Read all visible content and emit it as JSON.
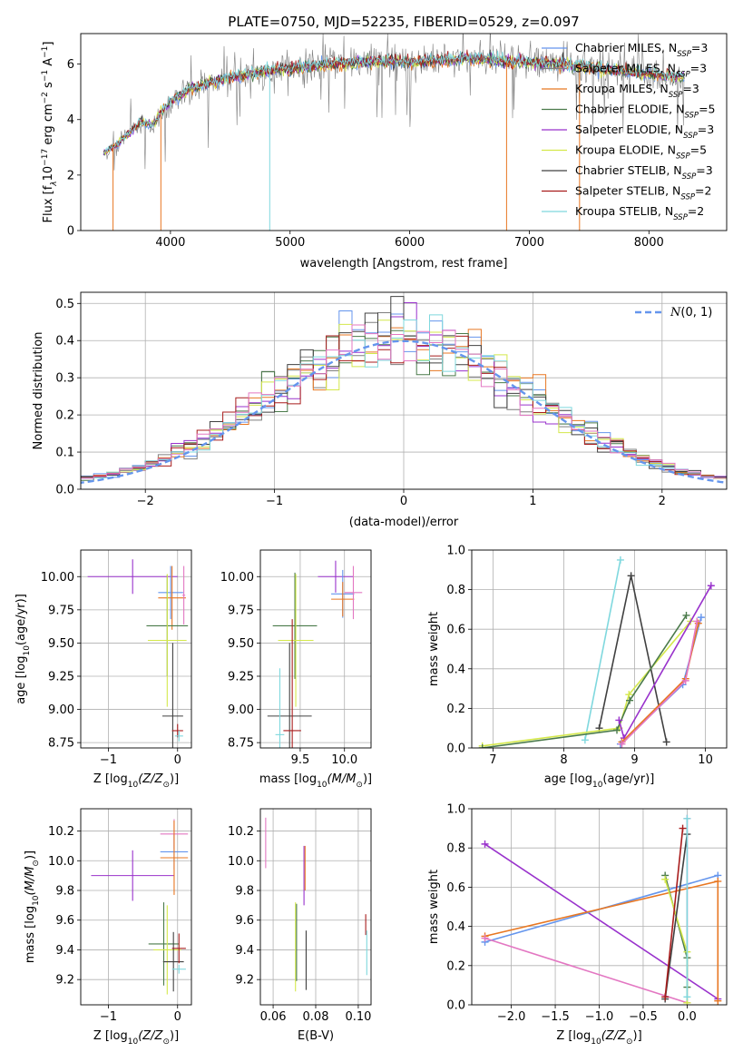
{
  "figure_title": "PLATE=0750, MJD=52235, FIBERID=0529, z=0.097",
  "colors": {
    "chabrier_miles": "#6495ED",
    "salpeter_miles": "#7f7f7f",
    "kroupa_miles": "#e87722",
    "chabrier_elodie": "#4a7a4a",
    "salpeter_elodie": "#9932CC",
    "kroupa_elodie": "#d4e84b",
    "chabrier_stelib": "#404040",
    "salpeter_stelib": "#a81c1c",
    "kroupa_stelib": "#7fd8de",
    "pink": "#e377c2",
    "gaussian": "#6495ED"
  },
  "chart_data": [
    {
      "id": "spectrum",
      "type": "line",
      "title": "PLATE=0750, MJD=52235, FIBERID=0529, z=0.097",
      "xlabel": "wavelength [Angstrom, rest frame]",
      "ylabel_parts": [
        "Flux [f",
        "λ",
        "10",
        "−17",
        " erg cm",
        "−2",
        " s",
        "−1",
        " A",
        "−1",
        "]"
      ],
      "xlim": [
        3250,
        8650
      ],
      "ylim": [
        0,
        7.1
      ],
      "xticks": [
        4000,
        5000,
        6000,
        7000,
        8000
      ],
      "yticks": [
        0,
        2,
        4,
        6
      ],
      "grid": false,
      "legend_position": "right",
      "legend": [
        {
          "pre": "Chabrier MILES, N",
          "sub": "SSP",
          "post": "=3",
          "color_key": "chabrier_miles"
        },
        {
          "pre": "Salpeter MILES, N",
          "sub": "SSP",
          "post": "=3",
          "color_key": "salpeter_miles"
        },
        {
          "pre": "Kroupa MILES, N",
          "sub": "SSP",
          "post": "=3",
          "color_key": "kroupa_miles"
        },
        {
          "pre": "Chabrier ELODIE, N",
          "sub": "SSP",
          "post": "=5",
          "color_key": "chabrier_elodie"
        },
        {
          "pre": "Salpeter ELODIE, N",
          "sub": "SSP",
          "post": "=3",
          "color_key": "salpeter_elodie"
        },
        {
          "pre": "Kroupa ELODIE, N",
          "sub": "SSP",
          "post": "=5",
          "color_key": "kroupa_elodie"
        },
        {
          "pre": "Chabrier STELIB, N",
          "sub": "SSP",
          "post": "=3",
          "color_key": "chabrier_stelib"
        },
        {
          "pre": "Salpeter STELIB, N",
          "sub": "SSP",
          "post": "=2",
          "color_key": "salpeter_stelib"
        },
        {
          "pre": "Kroupa STELIB, N",
          "sub": "SSP",
          "post": "=2",
          "color_key": "kroupa_stelib"
        }
      ],
      "continuum": {
        "x": [
          3450,
          3550,
          3650,
          3750,
          3850,
          3950,
          4050,
          4150,
          4300,
          4500,
          4700,
          4900,
          5100,
          5300,
          5500,
          5700,
          5900,
          6100,
          6300,
          6500,
          6700,
          6900,
          7100,
          7300,
          7500,
          7700,
          7900,
          8100,
          8300
        ],
        "y": [
          2.8,
          3.1,
          3.5,
          3.9,
          3.8,
          4.4,
          4.8,
          5.1,
          5.3,
          5.5,
          5.7,
          5.8,
          5.9,
          6.0,
          6.05,
          6.1,
          6.1,
          6.1,
          6.15,
          6.2,
          6.15,
          6.1,
          6.05,
          6.0,
          5.9,
          5.8,
          5.7,
          5.6,
          5.55
        ]
      },
      "dropouts": [
        {
          "x": 3520,
          "color_key": "kroupa_miles"
        },
        {
          "x": 3920,
          "color_key": "kroupa_miles"
        },
        {
          "x": 4830,
          "color_key": "kroupa_stelib"
        },
        {
          "x": 6810,
          "color_key": "kroupa_miles"
        },
        {
          "x": 7420,
          "color_key": "kroupa_miles"
        }
      ]
    },
    {
      "id": "residuals",
      "type": "histogram",
      "xlabel": "(data-model)/error",
      "ylabel": "Normed distribution",
      "xlim": [
        -2.5,
        2.5
      ],
      "ylim": [
        0,
        0.53
      ],
      "xticks": [
        -2,
        -1,
        0,
        1,
        2
      ],
      "yticks": [
        0.0,
        0.1,
        0.2,
        0.3,
        0.4,
        0.5
      ],
      "grid": true,
      "legend_position": "upper right",
      "legend": [
        {
          "label": "N(0, 1)",
          "style": "dashed",
          "color_key": "gaussian"
        }
      ],
      "bin_width": 0.1
    },
    {
      "id": "age_vs_z",
      "type": "errorbar",
      "xlabel_pre": "Z [log",
      "xlabel_sub": "10",
      "xlabel_mid": "(Z/Z",
      "xlabel_sub2": "⊙",
      "xlabel_post": ")]",
      "ylabel_pre": "age  [log",
      "ylabel_sub": "10",
      "ylabel_post": "(age/yr)]",
      "xlim": [
        -1.4,
        0.2
      ],
      "ylim": [
        8.71,
        10.2
      ],
      "xticks": [
        -1,
        0
      ],
      "yticks": [
        8.75,
        9.0,
        9.25,
        9.5,
        9.75,
        10.0
      ],
      "ytick_labels": [
        "8.75",
        "9.00",
        "9.25",
        "9.50",
        "9.75",
        "10.00"
      ],
      "grid": true,
      "points": [
        {
          "x": -0.65,
          "y": 10.0,
          "xerr": 0.65,
          "yerr": 0.13,
          "color_key": "salpeter_elodie"
        },
        {
          "x": -0.1,
          "y": 9.88,
          "xerr": 0.18,
          "yerr": 0.2,
          "color_key": "chabrier_miles"
        },
        {
          "x": -0.08,
          "y": 9.84,
          "xerr": 0.2,
          "yerr": 0.24,
          "color_key": "kroupa_miles"
        },
        {
          "x": 0.09,
          "y": 9.86,
          "xerr": 0.02,
          "yerr": 0.22,
          "color_key": "pink"
        },
        {
          "x": -0.15,
          "y": 9.63,
          "xerr": 0.3,
          "yerr": 0.38,
          "color_key": "chabrier_elodie"
        },
        {
          "x": -0.15,
          "y": 9.52,
          "xerr": 0.28,
          "yerr": 0.5,
          "color_key": "kroupa_elodie"
        },
        {
          "x": -0.07,
          "y": 8.95,
          "xerr": 0.15,
          "yerr": 0.55,
          "color_key": "chabrier_stelib"
        },
        {
          "x": 0.0,
          "y": 8.84,
          "xerr": 0.08,
          "yerr": 0.05,
          "color_key": "salpeter_stelib"
        },
        {
          "x": 0.02,
          "y": 8.8,
          "xerr": 0.06,
          "yerr": 0.04,
          "color_key": "kroupa_stelib"
        }
      ]
    },
    {
      "id": "age_vs_mass",
      "type": "errorbar",
      "xlabel_pre": "mass [log",
      "xlabel_sub": "10",
      "xlabel_mid": "(M/M",
      "xlabel_sub2": "⊙",
      "xlabel_post": ")]",
      "xlim": [
        9.05,
        10.3
      ],
      "ylim": [
        8.71,
        10.2
      ],
      "xticks": [
        9.5,
        10.0
      ],
      "xtick_labels": [
        "9.5",
        "10.0"
      ],
      "yticks": [
        8.75,
        9.0,
        9.25,
        9.5,
        9.75,
        10.0
      ],
      "ytick_labels": [
        "8.75",
        "9.00",
        "9.25",
        "9.50",
        "9.75",
        "10.00"
      ],
      "grid": true,
      "points": [
        {
          "x": 9.9,
          "y": 10.0,
          "xerr": 0.2,
          "yerr": 0.12,
          "color_key": "salpeter_elodie"
        },
        {
          "x": 9.98,
          "y": 9.87,
          "xerr": 0.13,
          "yerr": 0.18,
          "color_key": "chabrier_miles"
        },
        {
          "x": 9.98,
          "y": 9.83,
          "xerr": 0.13,
          "yerr": 0.13,
          "color_key": "kroupa_miles"
        },
        {
          "x": 10.1,
          "y": 9.88,
          "xerr": 0.1,
          "yerr": 0.2,
          "color_key": "pink"
        },
        {
          "x": 9.44,
          "y": 9.63,
          "xerr": 0.25,
          "yerr": 0.4,
          "color_key": "chabrier_elodie"
        },
        {
          "x": 9.45,
          "y": 9.52,
          "xerr": 0.2,
          "yerr": 0.5,
          "color_key": "kroupa_elodie"
        },
        {
          "x": 9.38,
          "y": 8.95,
          "xerr": 0.25,
          "yerr": 0.55,
          "color_key": "chabrier_stelib"
        },
        {
          "x": 9.41,
          "y": 8.84,
          "xerr": 0.1,
          "yerr": 0.84,
          "color_key": "salpeter_stelib"
        },
        {
          "x": 9.27,
          "y": 8.81,
          "xerr": 0.05,
          "yerr": 0.5,
          "color_key": "kroupa_stelib"
        }
      ]
    },
    {
      "id": "weight_vs_age",
      "type": "line",
      "xlabel_pre": "age  [log",
      "xlabel_sub": "10",
      "xlabel_post": "(age/yr)]",
      "ylabel": "mass weight",
      "xlim": [
        6.7,
        10.3
      ],
      "ylim": [
        0,
        1.0
      ],
      "xticks": [
        7,
        8,
        9,
        10
      ],
      "yticks": [
        0.0,
        0.2,
        0.4,
        0.6,
        0.8,
        1.0
      ],
      "grid": true,
      "series": [
        {
          "color_key": "kroupa_stelib",
          "x": [
            8.3,
            8.8
          ],
          "y": [
            0.04,
            0.95
          ]
        },
        {
          "color_key": "chabrier_stelib",
          "x": [
            8.5,
            8.95,
            9.45
          ],
          "y": [
            0.1,
            0.87,
            0.03
          ]
        },
        {
          "color_key": "kroupa_elodie",
          "x": [
            6.85,
            8.78,
            8.92,
            9.79
          ],
          "y": [
            0.01,
            0.1,
            0.27,
            0.64
          ]
        },
        {
          "color_key": "chabrier_elodie",
          "x": [
            6.85,
            8.75,
            8.93,
            9.73
          ],
          "y": [
            0.0,
            0.09,
            0.24,
            0.67
          ]
        },
        {
          "color_key": "salpeter_elodie",
          "x": [
            8.78,
            8.85,
            10.08
          ],
          "y": [
            0.14,
            0.05,
            0.82
          ]
        },
        {
          "color_key": "chabrier_miles",
          "x": [
            8.8,
            9.68,
            9.94
          ],
          "y": [
            0.02,
            0.32,
            0.66
          ]
        },
        {
          "color_key": "kroupa_miles",
          "x": [
            8.82,
            9.72,
            9.9
          ],
          "y": [
            0.03,
            0.35,
            0.63
          ]
        },
        {
          "color_key": "pink",
          "x": [
            8.82,
            9.72,
            9.88
          ],
          "y": [
            0.02,
            0.34,
            0.64
          ]
        }
      ]
    },
    {
      "id": "mass_vs_z",
      "type": "errorbar",
      "xlabel_pre": "Z [log",
      "xlabel_sub": "10",
      "xlabel_mid": "(Z/Z",
      "xlabel_sub2": "⊙",
      "xlabel_post": ")]",
      "ylabel_pre": "mass [log",
      "ylabel_sub": "10",
      "ylabel_mid": "(M/M",
      "ylabel_sub2": "⊙",
      "ylabel_post": ")]",
      "xlim": [
        -1.4,
        0.2
      ],
      "ylim": [
        9.03,
        10.35
      ],
      "xticks": [
        -1,
        0
      ],
      "yticks": [
        9.2,
        9.4,
        9.6,
        9.8,
        10.0,
        10.2
      ],
      "ytick_labels": [
        "9.2",
        "9.4",
        "9.6",
        "9.8",
        "10.0",
        "10.2"
      ],
      "grid": true,
      "points": [
        {
          "x": -0.65,
          "y": 9.9,
          "xerr": 0.6,
          "yerr": 0.17,
          "color_key": "salpeter_elodie"
        },
        {
          "x": -0.05,
          "y": 10.18,
          "xerr": 0.2,
          "yerr": 0.1,
          "color_key": "pink"
        },
        {
          "x": -0.05,
          "y": 10.06,
          "xerr": 0.2,
          "yerr": 0.12,
          "color_key": "chabrier_miles"
        },
        {
          "x": -0.05,
          "y": 10.02,
          "xerr": 0.2,
          "yerr": 0.25,
          "color_key": "kroupa_miles"
        },
        {
          "x": -0.2,
          "y": 9.44,
          "xerr": 0.22,
          "yerr": 0.28,
          "color_key": "chabrier_elodie"
        },
        {
          "x": -0.15,
          "y": 9.4,
          "xerr": 0.2,
          "yerr": 0.3,
          "color_key": "kroupa_elodie"
        },
        {
          "x": -0.06,
          "y": 9.32,
          "xerr": 0.15,
          "yerr": 0.2,
          "color_key": "chabrier_stelib"
        },
        {
          "x": 0.02,
          "y": 9.41,
          "xerr": 0.1,
          "yerr": 0.1,
          "color_key": "salpeter_stelib"
        },
        {
          "x": 0.02,
          "y": 9.27,
          "xerr": 0.1,
          "yerr": 0.03,
          "color_key": "kroupa_stelib"
        }
      ]
    },
    {
      "id": "mass_vs_ebv",
      "type": "errorbar",
      "xlabel": "E(B-V)",
      "xlim": [
        0.054,
        0.106
      ],
      "ylim": [
        9.03,
        10.35
      ],
      "xticks": [
        0.06,
        0.08,
        0.1
      ],
      "xtick_labels": [
        "0.06",
        "0.08",
        "0.10"
      ],
      "yticks": [
        9.2,
        9.4,
        9.6,
        9.8,
        10.0,
        10.2
      ],
      "ytick_labels": [
        "9.2",
        "9.4",
        "9.6",
        "9.8",
        "10.0",
        "10.2"
      ],
      "grid": true,
      "points": [
        {
          "x": 0.0565,
          "y": 10.12,
          "xerr": 0,
          "yerr": 0.17,
          "color_key": "pink"
        },
        {
          "x": 0.0745,
          "y": 9.9,
          "xerr": 0,
          "yerr": 0.2,
          "color_key": "salpeter_elodie"
        },
        {
          "x": 0.075,
          "y": 9.95,
          "xerr": 0,
          "yerr": 0.15,
          "color_key": "kroupa_miles"
        },
        {
          "x": 0.0705,
          "y": 9.42,
          "xerr": 0,
          "yerr": 0.3,
          "color_key": "kroupa_elodie"
        },
        {
          "x": 0.071,
          "y": 9.45,
          "xerr": 0,
          "yerr": 0.26,
          "color_key": "chabrier_elodie"
        },
        {
          "x": 0.0755,
          "y": 9.33,
          "xerr": 0,
          "yerr": 0.2,
          "color_key": "chabrier_stelib"
        },
        {
          "x": 0.1035,
          "y": 9.57,
          "xerr": 0,
          "yerr": 0.07,
          "color_key": "salpeter_stelib"
        },
        {
          "x": 0.104,
          "y": 9.38,
          "xerr": 0,
          "yerr": 0.15,
          "color_key": "kroupa_stelib"
        }
      ]
    },
    {
      "id": "weight_vs_z",
      "type": "line",
      "xlabel_pre": "Z [log",
      "xlabel_sub": "10",
      "xlabel_mid": "(Z/Z",
      "xlabel_sub2": "⊙",
      "xlabel_post": ")]",
      "ylabel": "mass weight",
      "xlim": [
        -2.45,
        0.45
      ],
      "ylim": [
        0,
        1.0
      ],
      "xticks": [
        -2.0,
        -1.5,
        -1.0,
        -0.5,
        0.0
      ],
      "xtick_labels": [
        "−2.0",
        "−1.5",
        "−1.0",
        "−0.5",
        "0.0"
      ],
      "yticks": [
        0.0,
        0.2,
        0.4,
        0.6,
        0.8,
        1.0
      ],
      "grid": true,
      "series": [
        {
          "color_key": "salpeter_elodie",
          "x": [
            -2.3,
            0.35
          ],
          "y": [
            0.82,
            0.03
          ]
        },
        {
          "color_key": "chabrier_miles",
          "x": [
            -2.3,
            0.35
          ],
          "y": [
            0.32,
            0.66
          ]
        },
        {
          "color_key": "kroupa_miles",
          "x": [
            -2.3,
            0.35,
            0.35
          ],
          "y": [
            0.35,
            0.63,
            0.02
          ]
        },
        {
          "color_key": "pink",
          "x": [
            -2.3,
            0.0,
            0.0
          ],
          "y": [
            0.34,
            0.01,
            0.95
          ]
        },
        {
          "color_key": "chabrier_elodie",
          "x": [
            -0.25,
            0.0,
            0.0
          ],
          "y": [
            0.66,
            0.24,
            0.09
          ]
        },
        {
          "color_key": "kroupa_elodie",
          "x": [
            -0.25,
            0.0,
            0.0
          ],
          "y": [
            0.64,
            0.27,
            0.01
          ]
        },
        {
          "color_key": "chabrier_stelib",
          "x": [
            -0.25,
            0.0
          ],
          "y": [
            0.03,
            0.87
          ]
        },
        {
          "color_key": "salpeter_stelib",
          "x": [
            -0.25,
            -0.05
          ],
          "y": [
            0.04,
            0.9
          ]
        },
        {
          "color_key": "kroupa_stelib",
          "x": [
            0.0,
            0.0
          ],
          "y": [
            0.04,
            0.95
          ]
        }
      ]
    }
  ]
}
